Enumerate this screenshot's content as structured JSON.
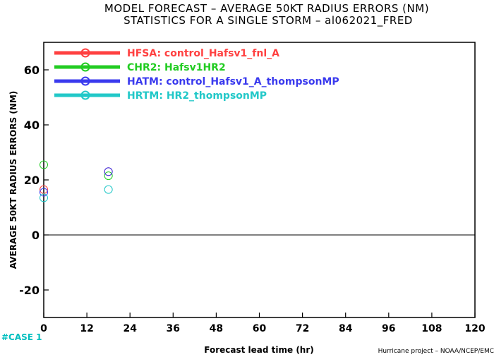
{
  "chart_data": {
    "type": "scatter",
    "title": "MODEL FORECAST – AVERAGE 50KT RADIUS ERRORS (NM)",
    "subtitle": "STATISTICS FOR A SINGLE STORM – al062021_FRED",
    "xlabel": "Forecast lead time (hr)",
    "ylabel": "AVERAGE 50KT RADIUS ERRORS (NM)",
    "xlim": [
      0,
      120
    ],
    "ylim": [
      -30,
      70
    ],
    "xticks": [
      "0",
      "12",
      "24",
      "36",
      "48",
      "60",
      "72",
      "84",
      "96",
      "108",
      "120"
    ],
    "yticks": [
      "-20",
      "0",
      "20",
      "40",
      "60"
    ],
    "grid": false,
    "zero_line": true,
    "legend_position": "top-left",
    "series": [
      {
        "name": "HFSA:  control_Hafsv1_fnl_A",
        "color": "#ff4040",
        "points": [
          [
            0,
            16.5
          ],
          [
            18,
            23.0
          ]
        ]
      },
      {
        "name": "CHR2:  Hafsv1HR2",
        "color": "#22cc22",
        "points": [
          [
            0,
            25.5
          ],
          [
            18,
            21.5
          ]
        ]
      },
      {
        "name": "HATM:  control_Hafsv1_A_thompsonMP",
        "color": "#3a3aee",
        "points": [
          [
            0,
            15.5
          ],
          [
            18,
            23.0
          ]
        ]
      },
      {
        "name": "HRTM:  HR2_thompsonMP",
        "color": "#22c8c8",
        "points": [
          [
            0,
            13.5
          ],
          [
            18,
            16.5
          ]
        ]
      }
    ]
  },
  "annotations": {
    "case_count": "#CASE  1",
    "credit": "Hurricane project – NOAA/NCEP/EMC"
  }
}
